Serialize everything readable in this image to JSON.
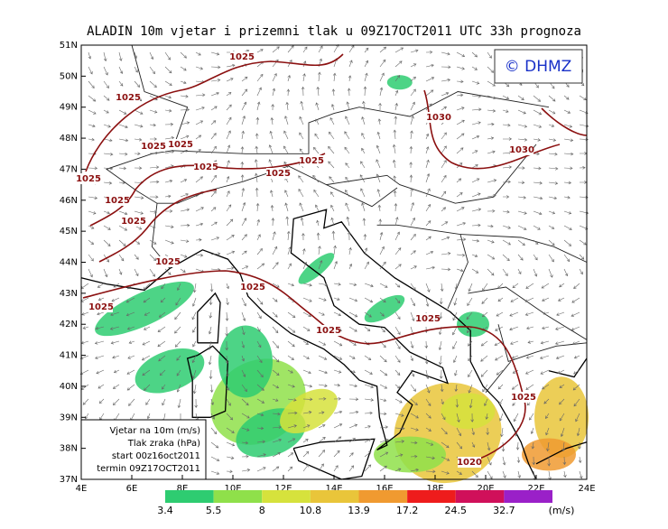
{
  "title": "ALADIN 10m vjetar i prizemni tlak u 09Z17OCT2011 UTC 33h prognoza",
  "logo": "© DHMZ",
  "lat_labels": [
    "51N",
    "50N",
    "49N",
    "48N",
    "47N",
    "46N",
    "45N",
    "44N",
    "43N",
    "42N",
    "41N",
    "40N",
    "39N",
    "38N",
    "37N"
  ],
  "lon_labels": [
    "4E",
    "6E",
    "8E",
    "10E",
    "12E",
    "14E",
    "16E",
    "18E",
    "20E",
    "22E",
    "24E"
  ],
  "info": [
    "Vjetar na 10m (m/s)",
    "Tlak zraka (hPa)",
    "start 00z16oct2011",
    "termin 09Z17OCT2011"
  ],
  "isobar_labels": [
    "1025",
    "1025",
    "1025",
    "1025",
    "1025",
    "1025",
    "1025",
    "1025",
    "1025",
    "1025",
    "1025",
    "1025",
    "1025",
    "1025",
    "1025",
    "1025",
    "1020",
    "1030",
    "1030"
  ],
  "colorbar": {
    "labels": [
      "3.4",
      "5.5",
      "8",
      "10.8",
      "13.9",
      "17.2",
      "24.5",
      "32.7"
    ],
    "unit": "(m/s)",
    "colors": [
      "#2ecc71",
      "#8fe04a",
      "#d6e23c",
      "#e9c53a",
      "#f09a30",
      "#ee1c1c",
      "#d0105a",
      "#9a20c8"
    ]
  }
}
